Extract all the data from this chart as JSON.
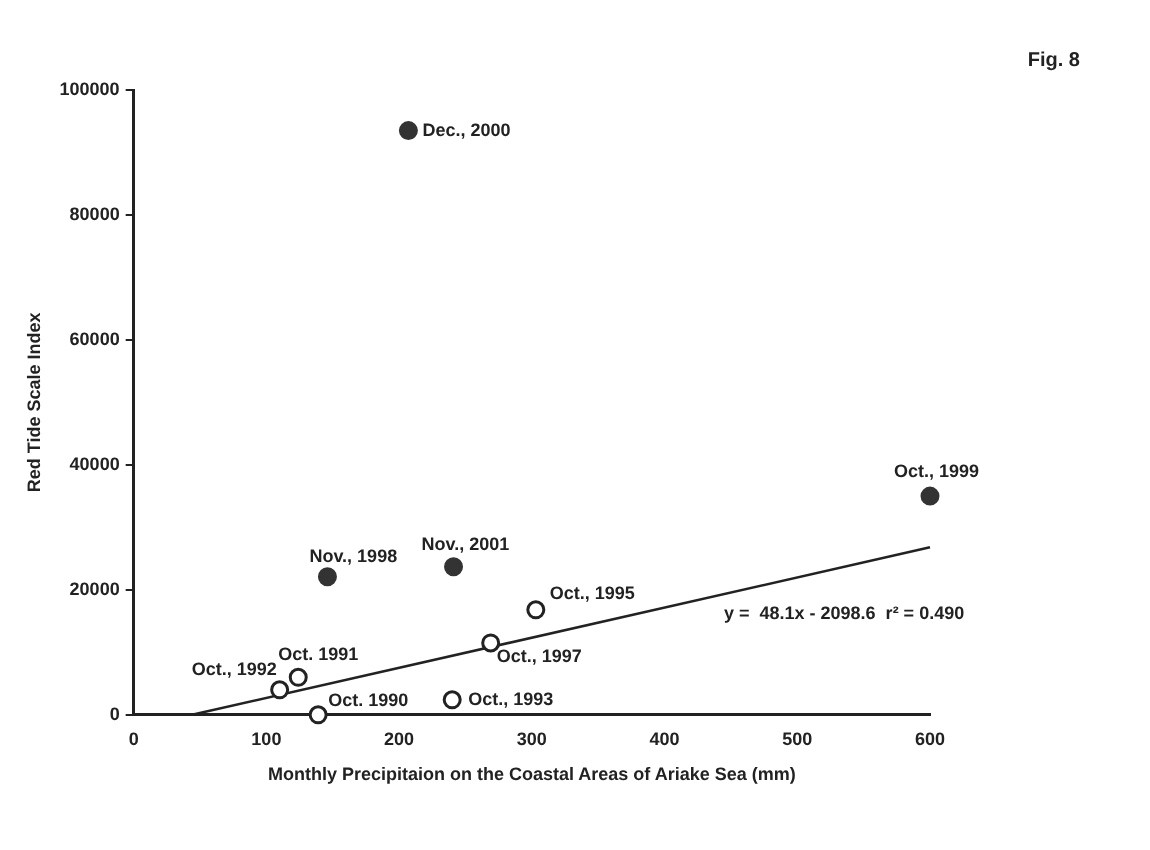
{
  "chart_data": {
    "type": "scatter",
    "title": "Fig. 8",
    "xlabel": "Monthly Precipitaion on the Coastal Areas of Ariake Sea (mm)",
    "ylabel": "Red Tide Scale Index",
    "xlim": [
      0,
      600
    ],
    "xticks": [
      0,
      100,
      200,
      300,
      400,
      500,
      600
    ],
    "ylim": [
      0,
      100000
    ],
    "yticks": [
      0,
      20000,
      40000,
      60000,
      80000,
      100000
    ],
    "grid": false,
    "legend": false,
    "marker": "circle",
    "series": [
      {
        "color": "#333333",
        "x": [
          207,
          146,
          241,
          600
        ],
        "values": [
          93500,
          22100,
          23700,
          35000
        ]
      },
      {
        "color": "#222222",
        "x": [
          110,
          124,
          139,
          240,
          269,
          303
        ],
        "values": [
          4000,
          6000,
          0,
          2400,
          11500,
          16800
        ]
      },
      {
        "type": "line",
        "color": "#222222",
        "line_style": "solid",
        "marker": "none",
        "x": [
          44,
          600
        ],
        "values": [
          0,
          26800
        ]
      }
    ],
    "annotations": [
      {
        "text": "Dec., 2000",
        "x": 207,
        "y": 93500
      },
      {
        "text": "Nov., 1998",
        "x": 146,
        "y": 22100
      },
      {
        "text": "Nov., 2001",
        "x": 241,
        "y": 23700
      },
      {
        "text": "Oct., 1999",
        "x": 600,
        "y": 35000
      },
      {
        "text": "Oct., 1995",
        "x": 303,
        "y": 16800
      },
      "y =  48.1x - 2098.6  r² = 0.490",
      {
        "text": "Oct., 1997",
        "x": 269,
        "y": 11500
      },
      {
        "text": "Oct. 1991",
        "x": 124,
        "y": 6000
      },
      {
        "text": "Oct., 1992",
        "x": 110,
        "y": 4000
      },
      {
        "text": "Oct. 1990",
        "x": 139,
        "y": 0
      },
      {
        "text": "Oct., 1993",
        "x": 240,
        "y": 2400
      }
    ]
  }
}
